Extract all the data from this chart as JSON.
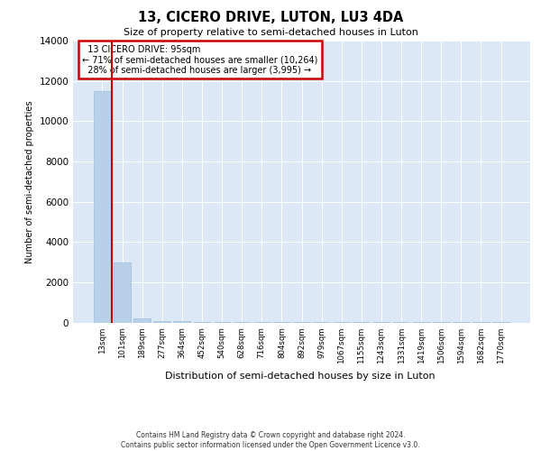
{
  "title": "13, CICERO DRIVE, LUTON, LU3 4DA",
  "subtitle": "Size of property relative to semi-detached houses in Luton",
  "xlabel": "Distribution of semi-detached houses by size in Luton",
  "ylabel": "Number of semi-detached properties",
  "property_label": "13 CICERO DRIVE: 95sqm",
  "pct_smaller": "71% of semi-detached houses are smaller (10,264)",
  "pct_larger": "28% of semi-detached houses are larger (3,995)",
  "arrow_smaller": "←",
  "arrow_larger": "→",
  "categories": [
    "13sqm",
    "101sqm",
    "189sqm",
    "277sqm",
    "364sqm",
    "452sqm",
    "540sqm",
    "628sqm",
    "716sqm",
    "804sqm",
    "892sqm",
    "979sqm",
    "1067sqm",
    "1155sqm",
    "1243sqm",
    "1331sqm",
    "1419sqm",
    "1506sqm",
    "1594sqm",
    "1682sqm",
    "1770sqm"
  ],
  "values": [
    11500,
    3000,
    200,
    80,
    50,
    35,
    25,
    18,
    12,
    8,
    6,
    5,
    4,
    3,
    2,
    2,
    2,
    1,
    1,
    1,
    1
  ],
  "bar_color": "#b8d0e8",
  "grid_color": "#dce8f5",
  "red_line_color": "#cc0000",
  "box_edge_color": "#cc0000",
  "ylim": [
    0,
    14000
  ],
  "yticks": [
    0,
    2000,
    4000,
    6000,
    8000,
    10000,
    12000,
    14000
  ],
  "red_line_x": 0.5,
  "footer_line1": "Contains HM Land Registry data © Crown copyright and database right 2024.",
  "footer_line2": "Contains public sector information licensed under the Open Government Licence v3.0."
}
